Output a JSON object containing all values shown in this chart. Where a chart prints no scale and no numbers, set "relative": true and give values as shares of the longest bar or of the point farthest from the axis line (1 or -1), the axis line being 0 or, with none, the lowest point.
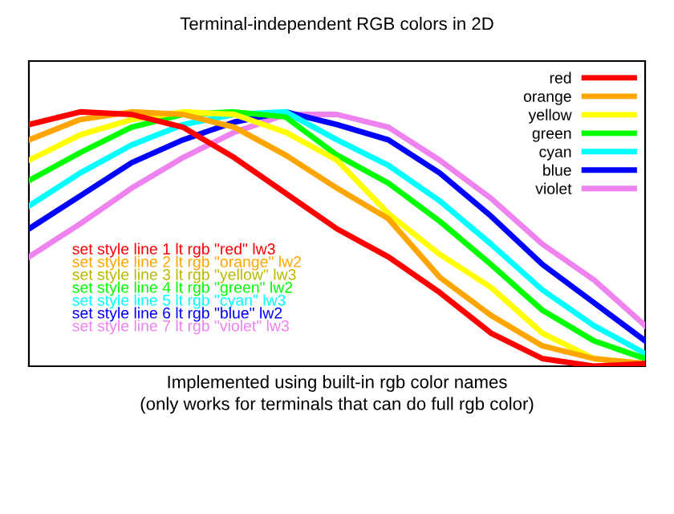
{
  "chart_data": {
    "type": "line",
    "title": "Terminal-independent RGB colors in 2D",
    "xlabel": "Implemented using built-in rgb color names\n(only works for terminals that can do full rgb color)",
    "relative": true,
    "categories": [
      null,
      null,
      null,
      null,
      null,
      null,
      null,
      null,
      null,
      null,
      null,
      null,
      null
    ],
    "series": [
      {
        "name": "red",
        "color": "#ff0000",
        "values": [
          0.95,
          1.0,
          0.99,
          0.94,
          0.82,
          0.68,
          0.54,
          0.43,
          0.29,
          0.13,
          0.03,
          0,
          0.01
        ]
      },
      {
        "name": "orange",
        "color": "#ffa500",
        "values": [
          0.89,
          0.97,
          1.0,
          0.99,
          0.94,
          0.83,
          0.7,
          0.58,
          0.35,
          0.2,
          0.08,
          0.03,
          0.01
        ]
      },
      {
        "name": "yellow",
        "color": "#ffff00",
        "values": [
          0.81,
          0.91,
          0.97,
          1.0,
          0.99,
          0.92,
          0.81,
          0.6,
          0.44,
          0.31,
          0.13,
          0.03,
          0.01
        ]
      },
      {
        "name": "green",
        "color": "#00ff00",
        "values": [
          0.73,
          0.84,
          0.94,
          0.99,
          1.0,
          0.98,
          0.83,
          0.72,
          0.57,
          0.4,
          0.22,
          0.1,
          0.03
        ]
      },
      {
        "name": "cyan",
        "color": "#00ffff",
        "values": [
          0.63,
          0.76,
          0.87,
          0.95,
          0.99,
          1.0,
          0.89,
          0.79,
          0.65,
          0.48,
          0.3,
          0.16,
          0.05
        ]
      },
      {
        "name": "blue",
        "color": "#0000ff",
        "values": [
          0.54,
          0.67,
          0.8,
          0.89,
          0.96,
          1.0,
          0.95,
          0.89,
          0.76,
          0.59,
          0.4,
          0.25,
          0.1
        ]
      },
      {
        "name": "violet",
        "color": "#ee82ee",
        "values": [
          0.43,
          0.56,
          0.7,
          0.82,
          0.92,
          0.99,
          0.99,
          0.94,
          0.81,
          0.66,
          0.48,
          0.34,
          0.16
        ]
      }
    ],
    "annotations": [
      "set style line 1 lt rgb \"red\" lw3",
      "set style line 2 lt rgb \"orange\" lw2",
      "set style line 3 lt rgb \"yellow\" lw3",
      "set style line 4 lt rgb \"green\" lw2",
      "set style line 5 lt rgb \"cyan\" lw3",
      "set style line 6 lt rgb \"blue\" lw2",
      "set style line 7 lt rgb \"violet\" lw3"
    ],
    "legend": "top right",
    "grid": false,
    "tick_labels": false
  }
}
